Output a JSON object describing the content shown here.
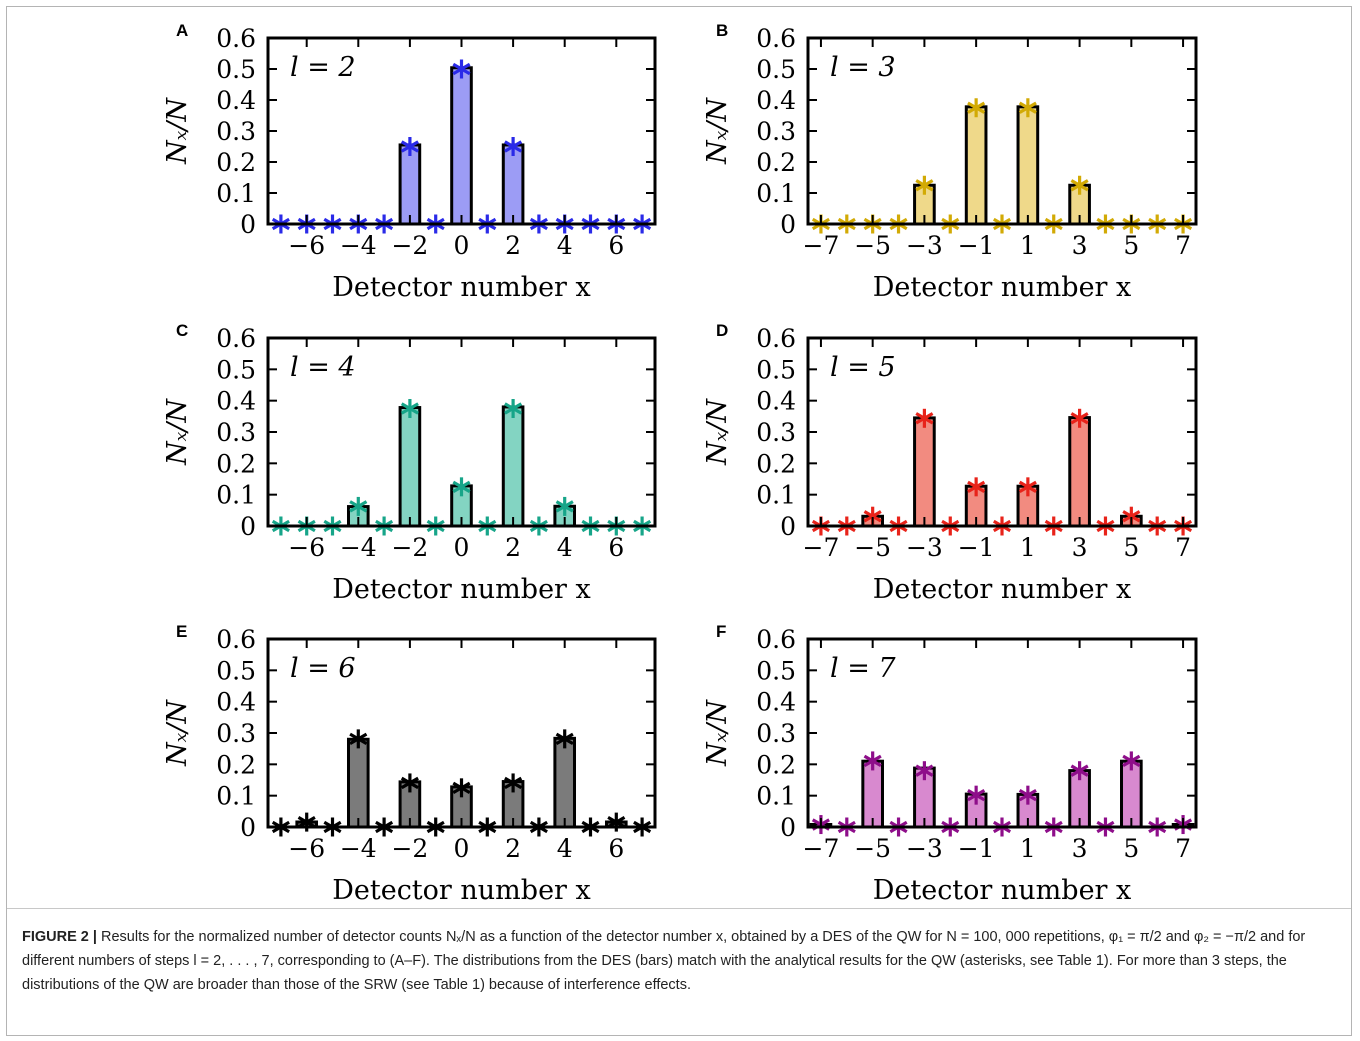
{
  "figure": {
    "caption_label": "FIGURE 2 |",
    "caption_text": " Results for the normalized number of detector counts Nₓ/N as a function of the detector number x, obtained by a DES of the QW for N = 100, 000 repetitions, φ₁ = π/2 and φ₂ = −π/2 and for different numbers of steps l = 2, . . . , 7, corresponding to (A–F). The distributions from the DES (bars) match with the analytical results for the QW (asterisks, see Table 1). For more than 3 steps, the distributions of the QW are broader than those of the SRW (see Table 1) because of interference effects."
  },
  "chart_data": [
    {
      "type": "bar",
      "panel": "A",
      "annotation": "l = 2",
      "xlabel": "Detector number x",
      "ylabel": "Nₓ/N",
      "ylim": [
        0,
        0.6
      ],
      "yticks": [
        "0",
        "0.1",
        "0.2",
        "0.3",
        "0.4",
        "0.5",
        "0.6"
      ],
      "xticks": [
        -6,
        -4,
        -2,
        0,
        2,
        4,
        6
      ],
      "x": [
        -7,
        -6,
        -5,
        -4,
        -3,
        -2,
        -1,
        0,
        1,
        2,
        3,
        4,
        5,
        6,
        7
      ],
      "bars": [
        0,
        0,
        0,
        0,
        0,
        0.255,
        0,
        0.504,
        0,
        0.255,
        0,
        0,
        0,
        0,
        0
      ],
      "qw": [
        0,
        0,
        0,
        0,
        0,
        0.25,
        0,
        0.5,
        0,
        0.25,
        0,
        0,
        0,
        0,
        0
      ],
      "bar_color": "#9c9cf5",
      "marker_color": "#2a2ae8"
    },
    {
      "type": "bar",
      "panel": "B",
      "annotation": "l = 3",
      "xlabel": "Detector number x",
      "ylabel": "Nₓ/N",
      "ylim": [
        0,
        0.6
      ],
      "yticks": [
        "0",
        "0.1",
        "0.2",
        "0.3",
        "0.4",
        "0.5",
        "0.6"
      ],
      "xticks": [
        -7,
        -5,
        -3,
        -1,
        1,
        3,
        5,
        7
      ],
      "x": [
        -7,
        -6,
        -5,
        -4,
        -3,
        -2,
        -1,
        0,
        1,
        2,
        3,
        4,
        5,
        6,
        7
      ],
      "bars": [
        0,
        0,
        0,
        0,
        0.125,
        0,
        0.378,
        0,
        0.378,
        0,
        0.125,
        0,
        0,
        0,
        0
      ],
      "qw": [
        0,
        0,
        0,
        0,
        0.125,
        0,
        0.375,
        0,
        0.375,
        0,
        0.125,
        0,
        0,
        0,
        0
      ],
      "bar_color": "#efd98a",
      "marker_color": "#d2aa05"
    },
    {
      "type": "bar",
      "panel": "C",
      "annotation": "l = 4",
      "xlabel": "Detector number x",
      "ylabel": "Nₓ/N",
      "ylim": [
        0,
        0.6
      ],
      "yticks": [
        "0",
        "0.1",
        "0.2",
        "0.3",
        "0.4",
        "0.5",
        "0.6"
      ],
      "xticks": [
        -6,
        -4,
        -2,
        0,
        2,
        4,
        6
      ],
      "x": [
        -7,
        -6,
        -5,
        -4,
        -3,
        -2,
        -1,
        0,
        1,
        2,
        3,
        4,
        5,
        6,
        7
      ],
      "bars": [
        0,
        0,
        0,
        0.062,
        0,
        0.378,
        0,
        0.128,
        0,
        0.38,
        0,
        0.063,
        0,
        0,
        0
      ],
      "qw": [
        0,
        0,
        0,
        0.0625,
        0,
        0.375,
        0,
        0.125,
        0,
        0.375,
        0,
        0.0625,
        0,
        0,
        0
      ],
      "bar_color": "#83d4c2",
      "marker_color": "#17a589"
    },
    {
      "type": "bar",
      "panel": "D",
      "annotation": "l = 5",
      "xlabel": "Detector number x",
      "ylabel": "Nₓ/N",
      "ylim": [
        0,
        0.6
      ],
      "yticks": [
        "0",
        "0.1",
        "0.2",
        "0.3",
        "0.4",
        "0.5",
        "0.6"
      ],
      "xticks": [
        -7,
        -5,
        -3,
        -1,
        1,
        3,
        5,
        7
      ],
      "x": [
        -7,
        -6,
        -5,
        -4,
        -3,
        -2,
        -1,
        0,
        1,
        2,
        3,
        4,
        5,
        6,
        7
      ],
      "bars": [
        0,
        0,
        0.031,
        0,
        0.345,
        0,
        0.127,
        0,
        0.127,
        0,
        0.346,
        0,
        0.031,
        0,
        0
      ],
      "qw": [
        0,
        0,
        0.03125,
        0,
        0.34375,
        0,
        0.125,
        0,
        0.125,
        0,
        0.34375,
        0,
        0.03125,
        0,
        0
      ],
      "bar_color": "#f28b80",
      "marker_color": "#e8231a"
    },
    {
      "type": "bar",
      "panel": "E",
      "annotation": "l = 6",
      "xlabel": "Detector number x",
      "ylabel": "Nₓ/N",
      "ylim": [
        0,
        0.6
      ],
      "yticks": [
        "0",
        "0.1",
        "0.2",
        "0.3",
        "0.4",
        "0.5",
        "0.6"
      ],
      "xticks": [
        -6,
        -4,
        -2,
        0,
        2,
        4,
        6
      ],
      "x": [
        -7,
        -6,
        -5,
        -4,
        -3,
        -2,
        -1,
        0,
        1,
        2,
        3,
        4,
        5,
        6,
        7
      ],
      "bars": [
        0,
        0.016,
        0,
        0.28,
        0,
        0.144,
        0,
        0.128,
        0,
        0.145,
        0,
        0.283,
        0,
        0.016,
        0
      ],
      "qw": [
        0,
        0.015625,
        0,
        0.28125,
        0,
        0.140625,
        0,
        0.125,
        0,
        0.140625,
        0,
        0.28125,
        0,
        0.015625,
        0
      ],
      "bar_color": "#7b7b7b",
      "marker_color": "#000000"
    },
    {
      "type": "bar",
      "panel": "F",
      "annotation": "l = 7",
      "xlabel": "Detector number x",
      "ylabel": "Nₓ/N",
      "ylim": [
        0,
        0.6
      ],
      "yticks": [
        "0",
        "0.1",
        "0.2",
        "0.3",
        "0.4",
        "0.5",
        "0.6"
      ],
      "xticks": [
        -7,
        -5,
        -3,
        -1,
        1,
        3,
        5,
        7
      ],
      "x": [
        -7,
        -6,
        -5,
        -4,
        -3,
        -2,
        -1,
        0,
        1,
        2,
        3,
        4,
        5,
        6,
        7
      ],
      "bars": [
        0.008,
        0,
        0.21,
        0,
        0.188,
        0,
        0.105,
        0,
        0.104,
        0,
        0.18,
        0,
        0.21,
        0,
        0.008
      ],
      "qw": [
        0.0078,
        0,
        0.2109,
        0,
        0.1797,
        0,
        0.1016,
        0,
        0.1016,
        0,
        0.1797,
        0,
        0.2109,
        0,
        0.0078
      ],
      "bar_color": "#d889cf",
      "marker_color": "#8e0e8a"
    }
  ]
}
